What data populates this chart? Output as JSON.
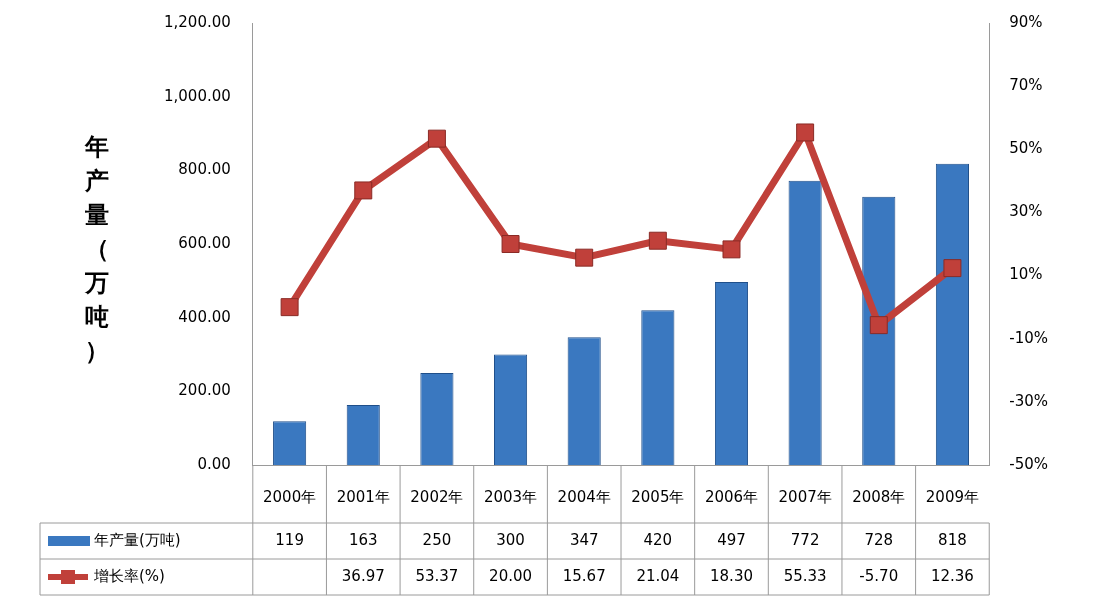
{
  "chart_data": {
    "type": "bar",
    "ylabel": "年产量（万吨）",
    "categories": [
      "2000年",
      "2001年",
      "2002年",
      "2003年",
      "2004年",
      "2005年",
      "2006年",
      "2007年",
      "2008年",
      "2009年"
    ],
    "series": [
      {
        "name": "年产量(万吨)",
        "color": "#3a78c0",
        "values": [
          119,
          163,
          250,
          300,
          347,
          420,
          497,
          772,
          728,
          818
        ],
        "value_labels": [
          "119",
          "163",
          "250",
          "300",
          "347",
          "420",
          "497",
          "772",
          "728",
          "818"
        ]
      },
      {
        "name": "增长率(%)",
        "type": "line",
        "axis": "y2",
        "color": "#c0403a",
        "values": [
          0,
          36.97,
          53.37,
          20.0,
          15.67,
          21.04,
          18.3,
          55.33,
          -5.7,
          12.36
        ],
        "value_labels": [
          null,
          "36.97",
          "53.37",
          "20.00",
          "15.67",
          "21.04",
          "18.30",
          "55.33",
          "-5.70",
          "12.36"
        ]
      }
    ],
    "ylim": [
      0,
      1200
    ],
    "yticks": [
      {
        "value": 0,
        "label": "0.00"
      },
      {
        "value": 200,
        "label": "200.00"
      },
      {
        "value": 400,
        "label": "400.00"
      },
      {
        "value": 600,
        "label": "600.00"
      },
      {
        "value": 800,
        "label": "800.00"
      },
      {
        "value": 1000,
        "label": "1,000.00"
      },
      {
        "value": 1200,
        "label": "1,200.00"
      }
    ],
    "y2lim": [
      -50,
      90
    ],
    "y2ticks": [
      {
        "value": -50,
        "label": "-50%"
      },
      {
        "value": -30,
        "label": "-30%"
      },
      {
        "value": -10,
        "label": "-10%"
      },
      {
        "value": 10,
        "label": "10%"
      },
      {
        "value": 30,
        "label": "30%"
      },
      {
        "value": 50,
        "label": "50%"
      },
      {
        "value": 70,
        "label": "70%"
      },
      {
        "value": 90,
        "label": "90%"
      }
    ],
    "grid": false,
    "legend": "bottom",
    "marker": "square",
    "line_style": "solid"
  }
}
